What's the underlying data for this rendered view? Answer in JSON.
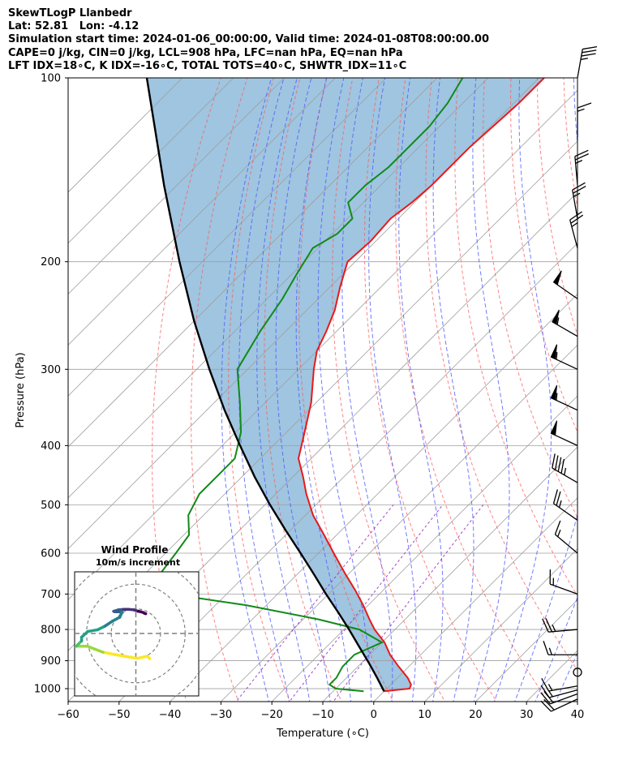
{
  "header": {
    "line1": "SkewTLogP Llanbedr",
    "line2": "Lat: 52.81   Lon: -4.12",
    "line3": "Simulation start time: 2024-01-06_00:00:00, Valid time: 2024-01-08T08:00:00.00",
    "line4": "CAPE=0 j/kg, CIN=0 j/kg, LCL=908 hPa, LFC=nan hPa, EQ=nan hPa",
    "line5": "LFT IDX=18∘C, K IDX=-16∘C, TOTAL TOTS=40∘C, SHWTR_IDX=11∘C"
  },
  "chart_data": {
    "type": "line",
    "subtype": "skew-T log-P",
    "xlabel": "Temperature (∘C)",
    "ylabel": "Pressure (hPa)",
    "xlim": [
      -60,
      40
    ],
    "ylim": [
      1050,
      100
    ],
    "yscale": "log",
    "skew_deg": 45,
    "grid": true,
    "xticks": [
      -60,
      -50,
      -40,
      -30,
      -20,
      -10,
      0,
      10,
      20,
      30,
      40
    ],
    "yticks": [
      100,
      200,
      300,
      400,
      500,
      600,
      700,
      800,
      900,
      1000
    ],
    "colors": {
      "temperature": "#e8191b",
      "dewpoint": "#118a18",
      "parcel": "#000000",
      "shade": "#9fc5e0",
      "dry_adiabats": "#ff5a5a",
      "moist_adiabats": "#4d5aff",
      "mixing_ratio": "#9532c8",
      "isotherms": "#9f9f9f"
    },
    "series": [
      {
        "key": "temperature",
        "pressure": [
          1010,
          1000,
          985,
          960,
          920,
          880,
          840,
          800,
          770,
          730,
          690,
          650,
          600,
          560,
          520,
          480,
          450,
          420,
          380,
          340,
          300,
          280,
          260,
          240,
          220,
          200,
          185,
          170,
          160,
          150,
          140,
          130,
          120,
          110,
          100
        ],
        "values": [
          0.0,
          4.5,
          4.0,
          2.0,
          -2.0,
          -6.0,
          -9.5,
          -14.0,
          -17.0,
          -21.0,
          -25.5,
          -30.5,
          -37.0,
          -42.5,
          -48.5,
          -54.0,
          -58.0,
          -62.5,
          -66.5,
          -71.0,
          -77.0,
          -80.0,
          -82.0,
          -84.5,
          -88.0,
          -91.5,
          -91.0,
          -91.5,
          -90.5,
          -90.0,
          -90.0,
          -90.0,
          -89.5,
          -89.0,
          -89.0
        ]
      },
      {
        "key": "dewpoint",
        "pressure": [
          1010,
          1000,
          985,
          960,
          920,
          880,
          840,
          800,
          770,
          730,
          700,
          680,
          650,
          600,
          560,
          520,
          480,
          450,
          420,
          380,
          340,
          300,
          260,
          230,
          210,
          190,
          180,
          170,
          160,
          150,
          140,
          130,
          120,
          110,
          100
        ],
        "values": [
          -4.0,
          -10.0,
          -12.0,
          -12.0,
          -13.0,
          -13.0,
          -10.0,
          -17.0,
          -27.0,
          -44.0,
          -61.0,
          -65.0,
          -67.0,
          -68.0,
          -69.0,
          -73.0,
          -75.0,
          -75.0,
          -75.0,
          -79.0,
          -85.0,
          -92.0,
          -95.0,
          -97.0,
          -99.0,
          -101.0,
          -99.0,
          -99.0,
          -103.0,
          -103.0,
          -102.0,
          -102.0,
          -102.0,
          -103.0,
          -105.0
        ]
      },
      {
        "key": "parcel",
        "pressure": [
          1010,
          960,
          908,
          850,
          800,
          750,
          700,
          650,
          600,
          550,
          500,
          450,
          400,
          350,
          300,
          250,
          200,
          150,
          100
        ],
        "values": [
          0.0,
          -4.0,
          -8.5,
          -14.0,
          -19.0,
          -24.5,
          -30.5,
          -36.7,
          -43.5,
          -51.0,
          -59.0,
          -67.5,
          -76.5,
          -86.5,
          -97.5,
          -110.0,
          -124.5,
          -142.5,
          -167.0
        ]
      }
    ],
    "wind_barbs": [
      {
        "pressure": 100,
        "speed_kt": 35,
        "direction_deg": 10
      },
      {
        "pressure": 125,
        "speed_kt": 15,
        "direction_deg": 0
      },
      {
        "pressure": 150,
        "speed_kt": 25,
        "direction_deg": 355
      },
      {
        "pressure": 170,
        "speed_kt": 25,
        "direction_deg": 350
      },
      {
        "pressure": 190,
        "speed_kt": 25,
        "direction_deg": 345
      },
      {
        "pressure": 230,
        "speed_kt": 50,
        "direction_deg": 305
      },
      {
        "pressure": 265,
        "speed_kt": 55,
        "direction_deg": 300
      },
      {
        "pressure": 300,
        "speed_kt": 55,
        "direction_deg": 295
      },
      {
        "pressure": 350,
        "speed_kt": 55,
        "direction_deg": 295
      },
      {
        "pressure": 400,
        "speed_kt": 50,
        "direction_deg": 295
      },
      {
        "pressure": 460,
        "speed_kt": 45,
        "direction_deg": 300
      },
      {
        "pressure": 530,
        "speed_kt": 25,
        "direction_deg": 305
      },
      {
        "pressure": 600,
        "speed_kt": 15,
        "direction_deg": 310
      },
      {
        "pressure": 700,
        "speed_kt": 15,
        "direction_deg": 290
      },
      {
        "pressure": 800,
        "speed_kt": 25,
        "direction_deg": 265
      },
      {
        "pressure": 880,
        "speed_kt": 15,
        "direction_deg": 270
      },
      {
        "pressure": 940,
        "speed_kt": 0,
        "direction_deg": 0
      },
      {
        "pressure": 990,
        "speed_kt": 15,
        "direction_deg": 260
      },
      {
        "pressure": 1005,
        "speed_kt": 15,
        "direction_deg": 255
      },
      {
        "pressure": 1020,
        "speed_kt": 20,
        "direction_deg": 250
      },
      {
        "pressure": 1040,
        "speed_kt": 20,
        "direction_deg": 245
      }
    ],
    "hodograph": {
      "title": "Wind Profile",
      "subtitle": "10m/s increment",
      "ring_step_ms": 10,
      "range_ms": 25,
      "u_ms": [
        5.6,
        4.6,
        0.6,
        -4.2,
        -8.8,
        -13.3,
        -16.8,
        -19.6,
        -22.0,
        -24.5,
        -27.0,
        -26.0,
        -24.0,
        -22.0,
        -22.0,
        -19.5,
        -15.5,
        -12.5,
        -9.5,
        -6.5,
        -6.0,
        -5.5,
        -7.0,
        -8.5,
        -9.0,
        -7.0,
        -5.0,
        -3.0,
        -1.0,
        0.0,
        1.0,
        2.0,
        3.0,
        3.5,
        4.0
      ],
      "v_ms": [
        -10.2,
        -9.2,
        -10.1,
        -9.3,
        -8.5,
        -7.6,
        -6.3,
        -5.2,
        -5.2,
        -5.2,
        -6.1,
        -5.8,
        -5.0,
        -3.0,
        -1.5,
        0.8,
        1.5,
        3.0,
        5.0,
        6.6,
        7.8,
        8.6,
        8.8,
        8.8,
        9.0,
        9.6,
        9.8,
        9.8,
        9.6,
        9.3,
        9.0,
        8.8,
        8.5,
        8.2,
        8.0
      ],
      "colormap": [
        "#fde725",
        "#9bd93c",
        "#4ac16d",
        "#1fa187",
        "#277f8e",
        "#365c8d",
        "#46327e",
        "#440154"
      ]
    }
  }
}
